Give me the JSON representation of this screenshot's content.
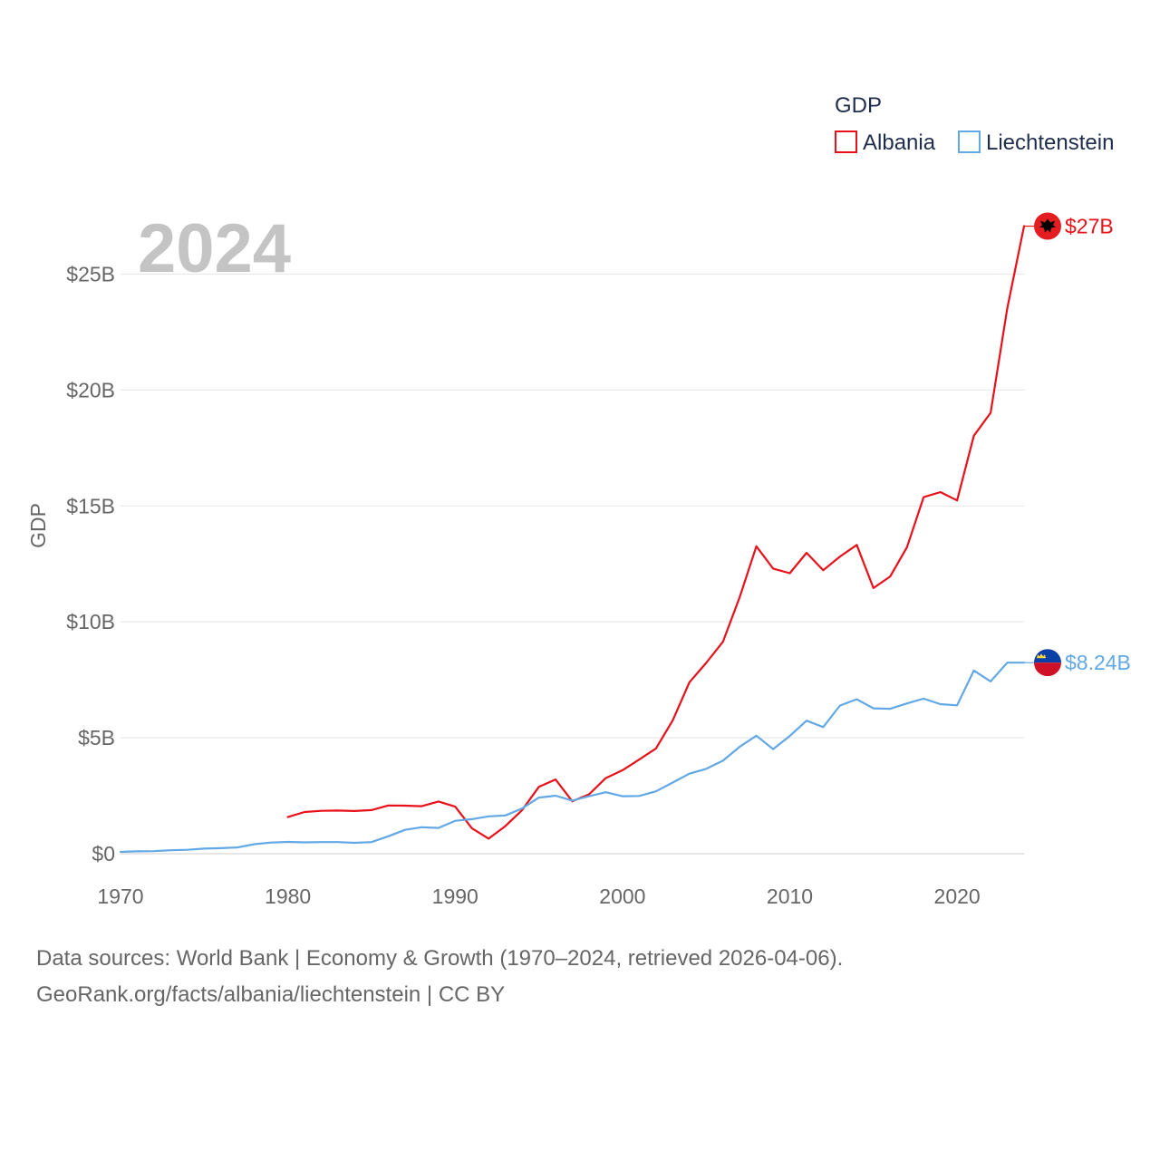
{
  "chart_data": {
    "type": "line",
    "title": "2024",
    "ylabel": "GDP",
    "xlabel": "",
    "legend_title": "GDP",
    "legend_position": "top-right",
    "xlim": [
      1970,
      2024
    ],
    "ylim": [
      0,
      27
    ],
    "x_ticks": [
      1970,
      1980,
      1990,
      2000,
      2010,
      2020
    ],
    "x_tick_labels": [
      "1970",
      "1980",
      "1990",
      "2000",
      "2010",
      "2020"
    ],
    "y_ticks": [
      0,
      5,
      10,
      15,
      20,
      25
    ],
    "y_tick_labels": [
      "$0",
      "$5B",
      "$10B",
      "$15B",
      "$20B",
      "$25B"
    ],
    "grid": true,
    "series": [
      {
        "name": "Albania",
        "color": "#e8111a",
        "end_label": "$27B",
        "marker": "albania-flag",
        "x": [
          1980,
          1981,
          1982,
          1983,
          1984,
          1985,
          1986,
          1987,
          1988,
          1989,
          1990,
          1991,
          1992,
          1993,
          1994,
          1995,
          1996,
          1997,
          1998,
          1999,
          2000,
          2001,
          2002,
          2003,
          2004,
          2005,
          2006,
          2007,
          2008,
          2009,
          2010,
          2011,
          2012,
          2013,
          2014,
          2015,
          2016,
          2017,
          2018,
          2019,
          2020,
          2021,
          2022,
          2023,
          2024
        ],
        "values": [
          1.58,
          1.8,
          1.85,
          1.86,
          1.84,
          1.88,
          2.08,
          2.07,
          2.05,
          2.25,
          2.03,
          1.1,
          0.65,
          1.19,
          1.88,
          2.88,
          3.2,
          2.26,
          2.56,
          3.26,
          3.6,
          4.06,
          4.54,
          5.75,
          7.39,
          8.23,
          9.14,
          11.05,
          13.26,
          12.3,
          12.1,
          12.98,
          12.23,
          12.82,
          13.32,
          11.46,
          11.96,
          13.22,
          15.38,
          15.6,
          15.24,
          18.03,
          19.02,
          23.53,
          27.07
        ]
      },
      {
        "name": "Liechtenstein",
        "color": "#62a8e5",
        "end_label": "$8.24B",
        "marker": "liechtenstein-flag",
        "x": [
          1970,
          1971,
          1972,
          1973,
          1974,
          1975,
          1976,
          1977,
          1978,
          1979,
          1980,
          1981,
          1982,
          1983,
          1984,
          1985,
          1986,
          1987,
          1988,
          1989,
          1990,
          1991,
          1992,
          1993,
          1994,
          1995,
          1996,
          1997,
          1998,
          1999,
          2000,
          2001,
          2002,
          2003,
          2004,
          2005,
          2006,
          2007,
          2008,
          2009,
          2010,
          2011,
          2012,
          2013,
          2014,
          2015,
          2016,
          2017,
          2018,
          2019,
          2020,
          2021,
          2022,
          2023,
          2024
        ],
        "values": [
          0.08,
          0.1,
          0.11,
          0.15,
          0.17,
          0.22,
          0.24,
          0.27,
          0.41,
          0.48,
          0.51,
          0.49,
          0.5,
          0.5,
          0.47,
          0.5,
          0.75,
          1.03,
          1.14,
          1.11,
          1.42,
          1.49,
          1.61,
          1.65,
          1.95,
          2.42,
          2.5,
          2.29,
          2.48,
          2.65,
          2.48,
          2.49,
          2.69,
          3.07,
          3.45,
          3.66,
          4.01,
          4.61,
          5.09,
          4.51,
          5.08,
          5.74,
          5.46,
          6.39,
          6.66,
          6.27,
          6.25,
          6.48,
          6.69,
          6.45,
          6.4,
          7.9,
          7.43,
          8.24,
          8.24
        ]
      }
    ]
  },
  "footer": {
    "line1": "Data sources: World Bank | Economy & Growth (1970–2024, retrieved 2026-04-06).",
    "line2": "GeoRank.org/facts/albania/liechtenstein | CC BY"
  }
}
